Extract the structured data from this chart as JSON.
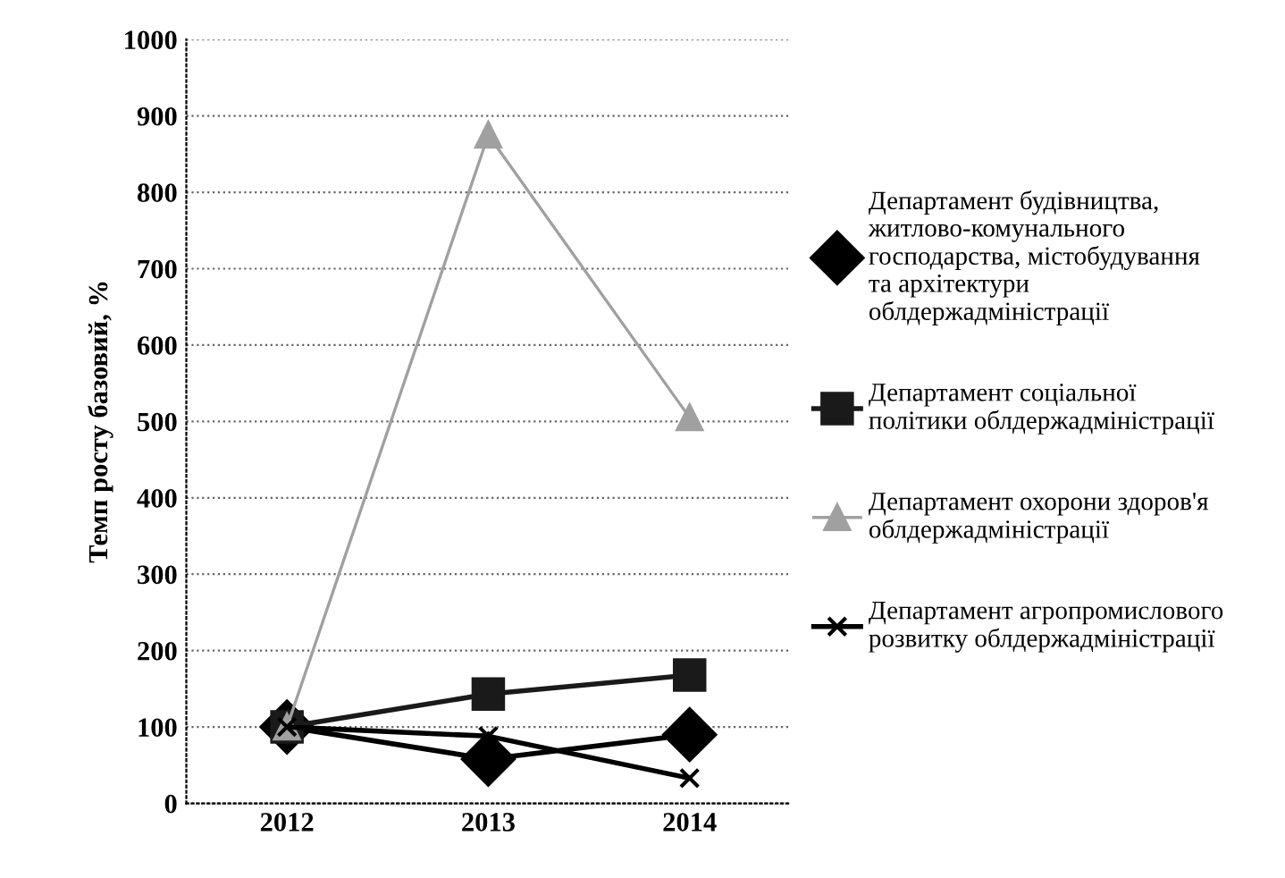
{
  "chart_data": {
    "type": "line",
    "ylabel": "Темп росту базовий, %",
    "categories": [
      "2012",
      "2013",
      "2014"
    ],
    "series": [
      {
        "name": "Департамент будівництва,\nжитлово-комунального\nгосподарства, містобудування\nта архітектури\nоблдержадміністрації",
        "color": "#000000",
        "marker": "diamond",
        "values": [
          100,
          58,
          90
        ]
      },
      {
        "name": "Департамент соціальної\nполітики облдержадміністрації",
        "color": "#1a1a1a",
        "marker": "square",
        "values": [
          100,
          143,
          168
        ]
      },
      {
        "name": "Департамент охорони здоров'я\nоблдержадміністрації",
        "color": "#a0a0a0",
        "marker": "triangle",
        "values": [
          100,
          875,
          505
        ]
      },
      {
        "name": "Департамент агропромислового\nрозвитку облдержадміністрації",
        "color": "#000000",
        "marker": "cross",
        "values": [
          100,
          88,
          33
        ]
      }
    ],
    "ylim": [
      0,
      1000
    ],
    "yticks": [
      0,
      100,
      200,
      300,
      400,
      500,
      600,
      700,
      800,
      900,
      1000
    ],
    "grid": "y",
    "legend": "right",
    "line_style": "solid"
  }
}
